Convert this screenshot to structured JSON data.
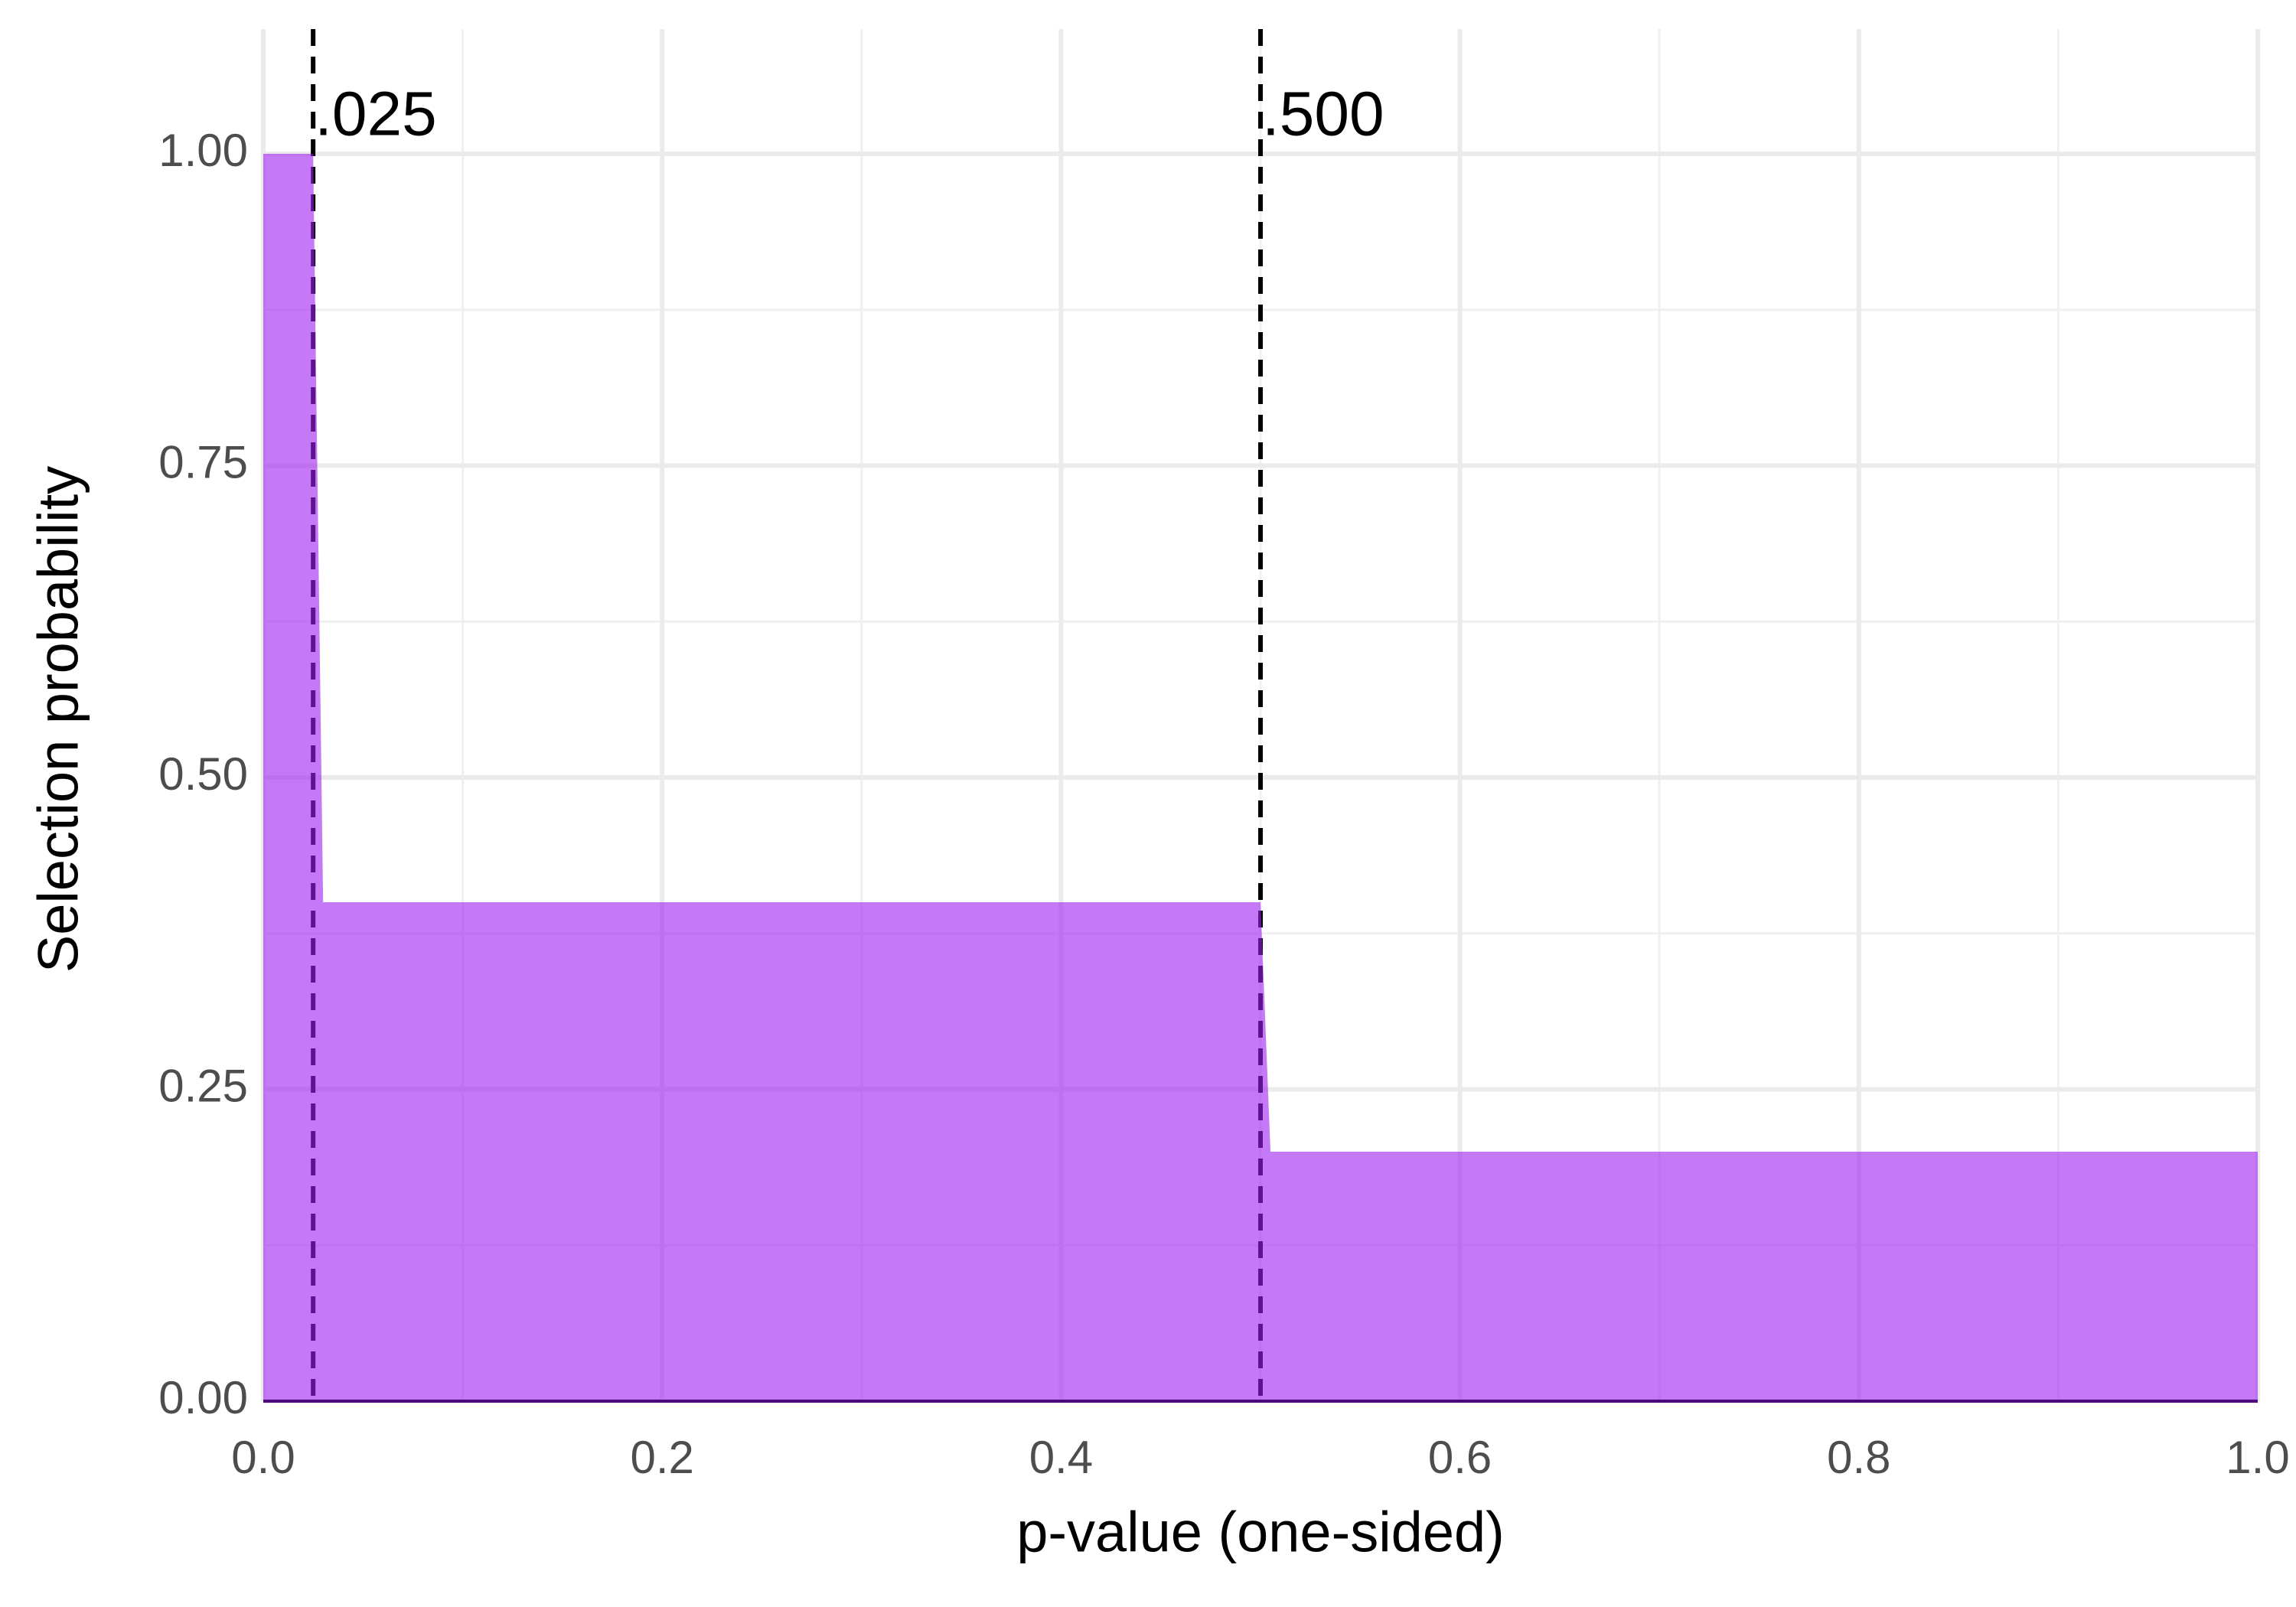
{
  "chart_data": {
    "type": "area",
    "x_label": "p-value (one-sided)",
    "y_label": "Selection probability",
    "x": [
      0,
      0.025,
      0.03,
      0.5,
      0.505,
      1
    ],
    "values": [
      1,
      1,
      0.4,
      0.4,
      0.2,
      0.2
    ],
    "color": "#a020f0",
    "xlim": [
      0,
      1
    ],
    "ylim": [
      0,
      1.1
    ],
    "xticks": [
      {
        "value": 0,
        "label": "0.0"
      },
      0.2,
      0.4,
      0.6,
      0.8,
      {
        "value": 1,
        "label": "1.0"
      }
    ],
    "yticks": [
      {
        "value": 0,
        "label": "0.00"
      },
      {
        "value": 0.25,
        "label": "0.25"
      },
      {
        "value": 0.5,
        "label": "0.50"
      },
      {
        "value": 0.75,
        "label": "0.75"
      },
      {
        "value": 1,
        "label": "1.00"
      }
    ],
    "grid": true,
    "vlines": [
      {
        "x": 0.025,
        "label": ".025"
      },
      {
        "x": 0.5,
        "label": ".500"
      }
    ]
  }
}
